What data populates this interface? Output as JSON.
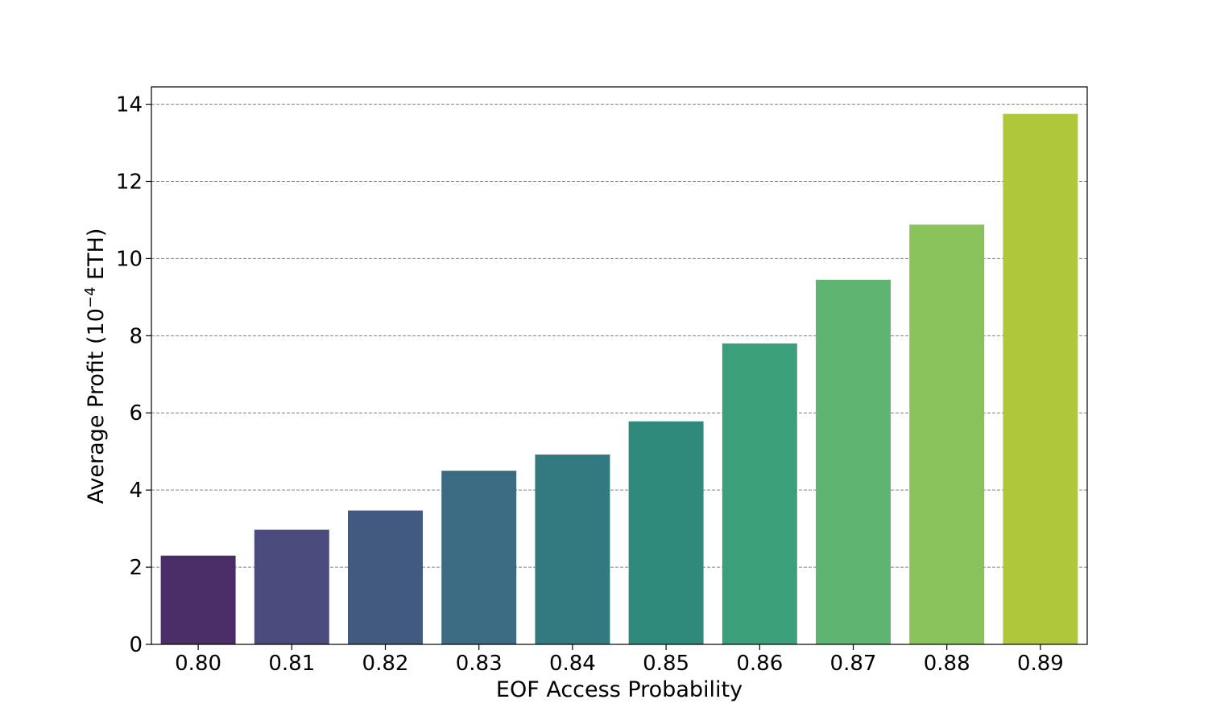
{
  "chart_data": {
    "type": "bar",
    "xlabel": "EOF Access Probability",
    "ylabel_main": "Average Profit (10",
    "ylabel_exp": "−4",
    "ylabel_unit": " ETH)",
    "categories": [
      "0.80",
      "0.81",
      "0.82",
      "0.83",
      "0.84",
      "0.85",
      "0.86",
      "0.87",
      "0.88",
      "0.89"
    ],
    "values": [
      2.3,
      2.97,
      3.47,
      4.5,
      4.92,
      5.78,
      7.8,
      9.45,
      10.88,
      13.75
    ],
    "colors": [
      "#4a2d67",
      "#4b4a7c",
      "#425a80",
      "#3a6b82",
      "#327a7f",
      "#2f8a7c",
      "#3ba07a",
      "#5fb472",
      "#89c25b",
      "#afc73a"
    ],
    "ylim": [
      0,
      14.45
    ],
    "yticks": [
      0,
      2,
      4,
      6,
      8,
      10,
      12,
      14
    ],
    "grid": "horizontal-dashed"
  }
}
